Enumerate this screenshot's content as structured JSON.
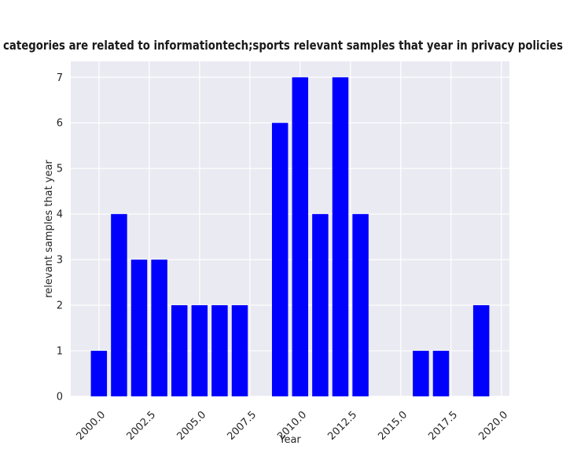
{
  "chart_data": {
    "type": "bar",
    "title": "categories are related to informationtech;sports relevant samples that year in privacy policies",
    "xlabel": "Year",
    "ylabel": "relevant samples that year",
    "x": [
      2000,
      2001,
      2002,
      2003,
      2004,
      2005,
      2006,
      2007,
      2009,
      2010,
      2011,
      2012,
      2013,
      2016,
      2017,
      2019
    ],
    "values": [
      1,
      4,
      3,
      3,
      2,
      2,
      2,
      2,
      6,
      7,
      4,
      7,
      4,
      1,
      1,
      2
    ],
    "xlim": [
      1998.6,
      2020.4
    ],
    "ylim": [
      0,
      7.35
    ],
    "xticks": [
      "2000.0",
      "2002.5",
      "2005.0",
      "2007.5",
      "2010.0",
      "2012.5",
      "2015.0",
      "2017.5",
      "2020.0"
    ],
    "yticks": [
      "0",
      "1",
      "2",
      "3",
      "4",
      "5",
      "6",
      "7"
    ],
    "bar_color": "#0000ff",
    "plot_background": "#eaeaf2",
    "grid": true,
    "legend": "none"
  }
}
